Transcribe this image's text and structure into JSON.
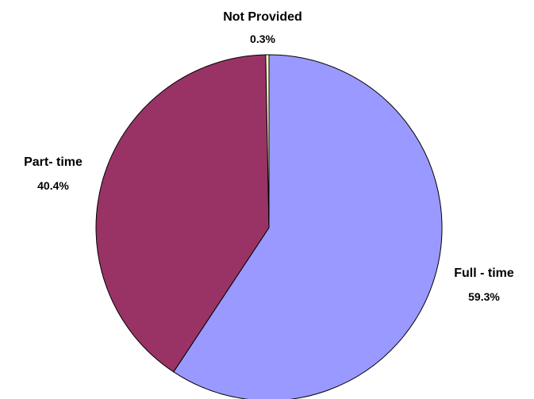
{
  "chart_data": {
    "type": "pie",
    "title": "",
    "slices": [
      {
        "label": "Full - time",
        "value": 59.3,
        "value_label": "59.3%",
        "color": "#9999FF"
      },
      {
        "label": "Part- time",
        "value": 40.4,
        "value_label": "40.4%",
        "color": "#993366"
      },
      {
        "label": "Not Provided",
        "value": 0.3,
        "value_label": "0.3%",
        "color": "#FFFFCC"
      }
    ],
    "start_angle_deg": 0,
    "direction": "clockwise",
    "legend": "none",
    "outline_color": "#000000"
  }
}
